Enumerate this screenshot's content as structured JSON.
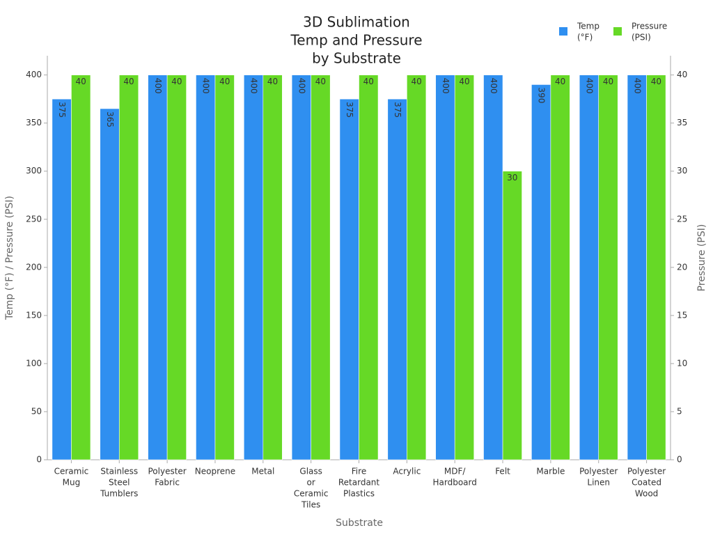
{
  "chart_data": {
    "type": "bar",
    "title": [
      "3D Sublimation",
      "Temp and Pressure",
      "by Substrate"
    ],
    "x_label": "Substrate",
    "y_label": "Temp (°F) / Pressure (PSI)",
    "y2_label": "Pressure (PSI)",
    "categories": [
      [
        "Ceramic",
        "Mug"
      ],
      [
        "Stainless",
        "Steel",
        "Tumblers"
      ],
      [
        "Polyester",
        "Fabric"
      ],
      [
        "Neoprene"
      ],
      [
        "Metal"
      ],
      [
        "Glass",
        "or",
        "Ceramic",
        "Tiles"
      ],
      [
        "Fire",
        "Retardant",
        "Plastics"
      ],
      [
        "Acrylic"
      ],
      [
        "MDF/",
        "Hardboard"
      ],
      [
        "Felt"
      ],
      [
        "Marble"
      ],
      [
        "Polyester",
        "Linen"
      ],
      [
        "Polyester",
        "Coated",
        "Wood"
      ]
    ],
    "series": [
      {
        "name": [
          "Temp",
          "(°F)"
        ],
        "color": "#2f8ff0",
        "values": [
          375,
          365,
          400,
          400,
          400,
          400,
          375,
          375,
          400,
          400,
          390,
          400,
          400
        ]
      },
      {
        "name": [
          "Pressure",
          "(PSI)"
        ],
        "color": "#66d926",
        "axis": "y2",
        "values": [
          40,
          40,
          40,
          40,
          40,
          40,
          40,
          40,
          40,
          30,
          40,
          40,
          40
        ]
      }
    ],
    "ylim": [
      0,
      420
    ],
    "yticks": [
      0,
      50,
      100,
      150,
      200,
      250,
      300,
      350,
      400
    ],
    "y2lim": [
      0,
      42
    ],
    "y2ticks": [
      0,
      5,
      10,
      15,
      20,
      25,
      30,
      35,
      40
    ],
    "legend": "top-right"
  }
}
